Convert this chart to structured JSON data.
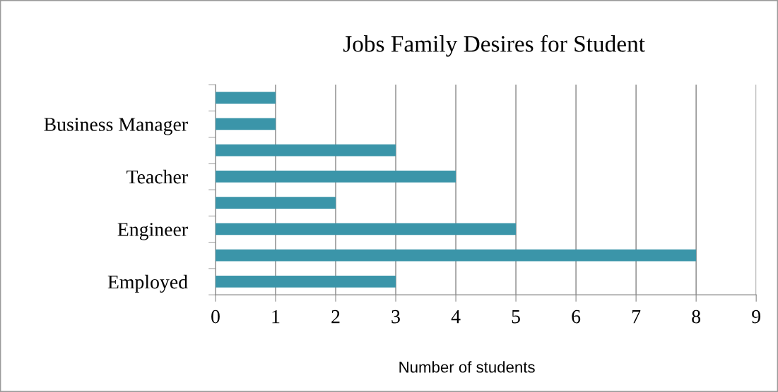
{
  "chart_data": {
    "type": "bar",
    "orientation": "horizontal",
    "title": "Jobs Family Desires for Student",
    "xlabel": "Number of students",
    "categories": [
      null,
      "Business Manager",
      null,
      "Teacher",
      null,
      "Engineer",
      null,
      "Employed"
    ],
    "values": [
      1,
      1,
      3,
      4,
      2,
      5,
      8,
      3
    ],
    "color": "#3b95a9",
    "xlim": [
      0,
      9
    ],
    "xticks": [
      0,
      1,
      2,
      3,
      4,
      5,
      6,
      7,
      8,
      9
    ],
    "grid": "x",
    "legend": false
  }
}
